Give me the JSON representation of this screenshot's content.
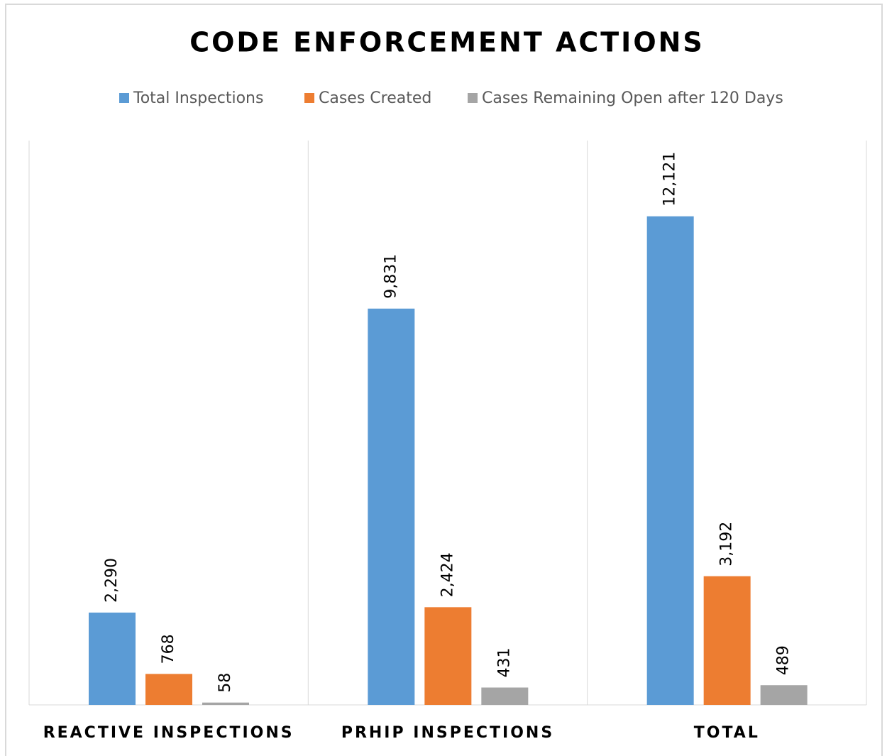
{
  "chart_data": {
    "type": "bar",
    "title": "CODE ENFORCEMENT ACTIONS",
    "categories": [
      "REACTIVE INSPECTIONS",
      "PRHIP INSPECTIONS",
      "TOTAL"
    ],
    "series": [
      {
        "name": "Total Inspections",
        "color": "#5b9bd5",
        "values": [
          2290,
          9831,
          12121
        ],
        "value_labels": [
          "2,290",
          "9,831",
          "12,121"
        ]
      },
      {
        "name": "Cases Created",
        "color": "#ed7d31",
        "values": [
          768,
          2424,
          3192
        ],
        "value_labels": [
          "768",
          "2,424",
          "3,192"
        ]
      },
      {
        "name": "Cases Remaining Open after 120 Days",
        "color": "#a5a5a5",
        "values": [
          58,
          431,
          489
        ],
        "value_labels": [
          "58",
          "431",
          "489"
        ]
      }
    ],
    "ylim": [
      0,
      14000
    ],
    "legend": "top"
  }
}
